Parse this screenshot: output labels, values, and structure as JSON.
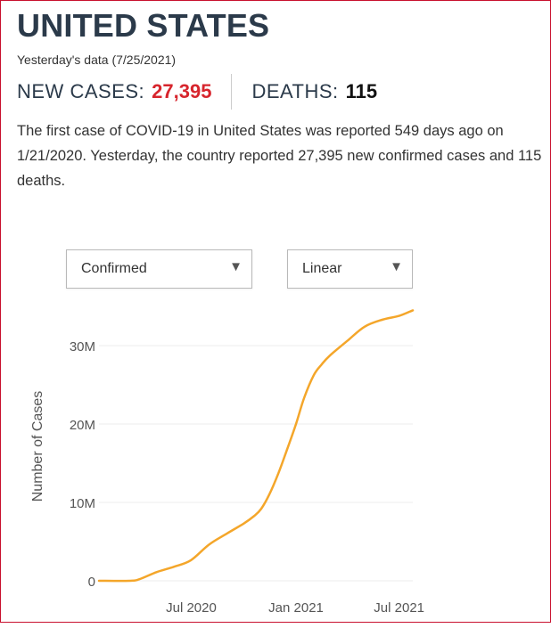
{
  "header": {
    "title": "UNITED STATES",
    "date_line": "Yesterday's data (7/25/2021)"
  },
  "stats": {
    "new_cases_label": "NEW CASES:",
    "new_cases_value": "27,395",
    "deaths_label": "DEATHS:",
    "deaths_value": "115"
  },
  "summary": {
    "text": "The first case of COVID-19 in United States was reported 549 days ago on 1/21/2020. Yesterday, the country reported 27,395 new confirmed cases and 115 deaths."
  },
  "controls": {
    "type_select": {
      "selected": "Confirmed"
    },
    "scale_select": {
      "selected": "Linear"
    }
  },
  "colors": {
    "accent_red": "#d7252d",
    "line_orange": "#f4a62a",
    "title_navy": "#2b3a4a",
    "frame_red": "#c8102e"
  },
  "icons": {
    "dropdown_arrow": "chevron-down-icon"
  },
  "chart_data": {
    "type": "line",
    "title": "",
    "xlabel": "",
    "ylabel": "Number of Cases",
    "y_tick_labels": [
      "0",
      "10M",
      "20M",
      "30M"
    ],
    "y_ticks": [
      0,
      10000000,
      20000000,
      30000000
    ],
    "x_tick_labels": [
      "Jul 2020",
      "Jan 2021",
      "Jul 2021"
    ],
    "x_ticks": [
      "2020-07-01",
      "2021-01-01",
      "2021-07-01"
    ],
    "xlim": [
      "2020-01-21",
      "2021-07-25"
    ],
    "ylim": [
      0,
      34000000
    ],
    "grid": true,
    "series": [
      {
        "name": "",
        "color": "#f4a62a",
        "points": [
          [
            "2020-01-21",
            0
          ],
          [
            "2020-03-15",
            3000
          ],
          [
            "2020-04-01",
            200000
          ],
          [
            "2020-05-01",
            1100000
          ],
          [
            "2020-06-01",
            1800000
          ],
          [
            "2020-06-30",
            2600000
          ],
          [
            "2020-08-01",
            4600000
          ],
          [
            "2020-09-01",
            6000000
          ],
          [
            "2020-10-01",
            7300000
          ],
          [
            "2020-10-20",
            8300000
          ],
          [
            "2020-11-01",
            9200000
          ],
          [
            "2020-11-15",
            11000000
          ],
          [
            "2020-12-01",
            13700000
          ],
          [
            "2020-12-15",
            16500000
          ],
          [
            "2021-01-01",
            20000000
          ],
          [
            "2021-01-15",
            23300000
          ],
          [
            "2021-02-01",
            26200000
          ],
          [
            "2021-02-15",
            27600000
          ],
          [
            "2021-03-01",
            28700000
          ],
          [
            "2021-04-01",
            30600000
          ],
          [
            "2021-05-01",
            32400000
          ],
          [
            "2021-06-01",
            33300000
          ],
          [
            "2021-07-01",
            33800000
          ],
          [
            "2021-07-25",
            34500000
          ]
        ]
      }
    ]
  }
}
